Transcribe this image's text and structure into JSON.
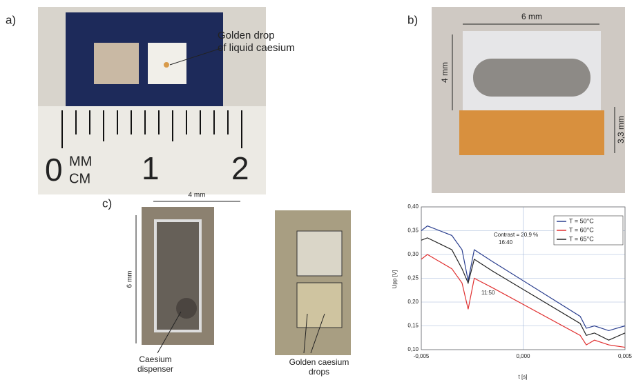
{
  "panels": {
    "a": {
      "label": "a)",
      "annotation": [
        "Golden drop",
        "of liquid caesium"
      ],
      "ruler": [
        "0",
        "MM",
        "CM",
        "1",
        "2"
      ]
    },
    "b": {
      "label": "b)",
      "width": "6 mm",
      "height": "4 mm",
      "base": "3,3 mm"
    },
    "c": {
      "label": "c)",
      "width": "4 mm",
      "height": "6 mm",
      "dispenser": [
        "Caesium",
        "dispenser"
      ],
      "drops": [
        "Golden caesium",
        "drops"
      ]
    }
  },
  "chart_data": {
    "type": "line",
    "x_label": "t [s]",
    "y_label": "Upp [V]",
    "annotations": [
      "Contrast  = 20,9 %",
      "16:40",
      "11:50"
    ],
    "x": [
      -0.005,
      -0.0047,
      -0.0035,
      -0.003,
      -0.0027,
      -0.0024,
      -0.0015,
      0.0028,
      0.0031,
      0.0035,
      0.0042,
      0.005
    ],
    "series": [
      {
        "name": "T = 50°C",
        "color": "#2b3f8f",
        "values": [
          0.35,
          0.36,
          0.34,
          0.31,
          0.245,
          0.31,
          0.285,
          0.17,
          0.145,
          0.15,
          0.14,
          0.15
        ]
      },
      {
        "name": "T = 60°C",
        "color": "#e03030",
        "values": [
          0.29,
          0.3,
          0.27,
          0.24,
          0.185,
          0.25,
          0.23,
          0.13,
          0.11,
          0.12,
          0.11,
          0.105
        ]
      },
      {
        "name": "T = 65°C",
        "color": "#222222",
        "values": [
          0.33,
          0.335,
          0.31,
          0.27,
          0.24,
          0.29,
          0.265,
          0.155,
          0.13,
          0.135,
          0.12,
          0.135
        ]
      }
    ],
    "xlim": [
      -0.005,
      0.005
    ],
    "xticks": [
      {
        "value": -0.005,
        "label": "-0,005"
      },
      {
        "value": 0,
        "label": "0,000"
      },
      {
        "value": 0.005,
        "label": "0,005"
      }
    ],
    "ylim": [
      0.1,
      0.4
    ],
    "yticks": [
      {
        "value": 0.1,
        "label": "0,10"
      },
      {
        "value": 0.15,
        "label": "0,15"
      },
      {
        "value": 0.2,
        "label": "0,20"
      },
      {
        "value": 0.25,
        "label": "0,25"
      },
      {
        "value": 0.3,
        "label": "0,30"
      },
      {
        "value": 0.35,
        "label": "0,35"
      },
      {
        "value": 0.4,
        "label": "0,40"
      }
    ],
    "grid": true
  }
}
